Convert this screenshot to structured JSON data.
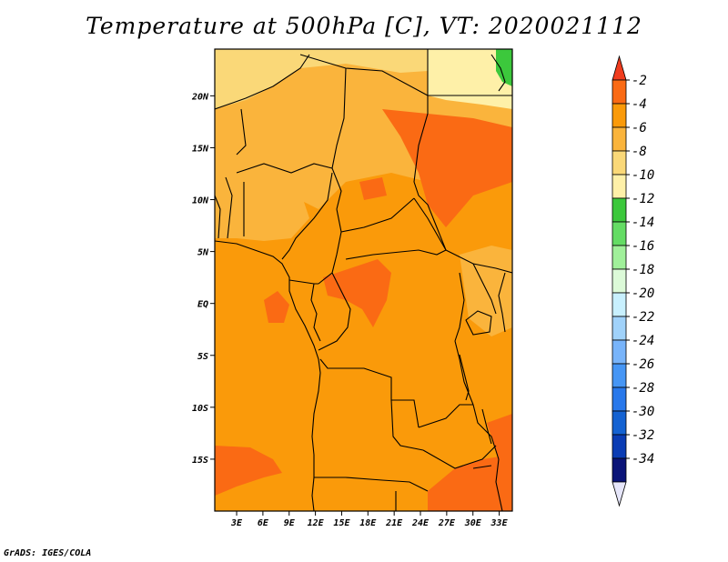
{
  "title": "Temperature at 500hPa [C], VT: 2020021112",
  "credit": "GrADS: IGES/COLA",
  "lat_labels": [
    "20N",
    "15N",
    "10N",
    "5N",
    "EQ",
    "5S",
    "10S",
    "15S"
  ],
  "lat_values": [
    20,
    15,
    10,
    5,
    0,
    -5,
    -10,
    -15
  ],
  "lon_labels": [
    "3E",
    "6E",
    "9E",
    "12E",
    "15E",
    "18E",
    "21E",
    "24E",
    "27E",
    "30E",
    "33E"
  ],
  "lon_values": [
    3,
    6,
    9,
    12,
    15,
    18,
    21,
    24,
    27,
    30,
    33
  ],
  "extent": {
    "lon_min": 0.5,
    "lon_max": 34.5,
    "lat_min": -20,
    "lat_max": 24.5
  },
  "colorbar": {
    "labels": [
      "-2",
      "-4",
      "-6",
      "-8",
      "-10",
      "-12",
      "-14",
      "-16",
      "-18",
      "-20",
      "-22",
      "-24",
      "-26",
      "-28",
      "-30",
      "-32",
      "-34"
    ],
    "colors": [
      "#f03c1e",
      "#fa6a14",
      "#fa9a0a",
      "#fab43c",
      "#fad878",
      "#fef0a8",
      "#3cc83c",
      "#64dc64",
      "#a0f09a",
      "#dcfad8",
      "#c8f0fe",
      "#a0d2fa",
      "#78b4fa",
      "#4696f5",
      "#2878eb",
      "#1462d2",
      "#0a3cb4",
      "#0a1478",
      "#e6e6fa"
    ]
  },
  "regions": [
    {
      "name": "base",
      "color": "#fa9a0a"
    },
    {
      "name": "sahara-north",
      "color": "#fab43c"
    },
    {
      "name": "far-north",
      "color": "#fad878"
    },
    {
      "name": "ne-yellow",
      "color": "#fef0a8"
    },
    {
      "name": "ne-green",
      "color": "#3cc83c"
    },
    {
      "name": "sudan-hot",
      "color": "#fa6a14"
    },
    {
      "name": "chad-hot",
      "color": "#fa6a14"
    },
    {
      "name": "congo-hot",
      "color": "#fa6a14"
    },
    {
      "name": "gabon-hot",
      "color": "#fa6a14"
    },
    {
      "name": "namibia-hot",
      "color": "#fa6a14"
    },
    {
      "name": "mozambique-hot",
      "color": "#fa6a14"
    },
    {
      "name": "southeast-hot",
      "color": "#fa6a14"
    },
    {
      "name": "west-africa",
      "color": "#fab43c"
    },
    {
      "name": "east-lakes",
      "color": "#fab43c"
    }
  ]
}
